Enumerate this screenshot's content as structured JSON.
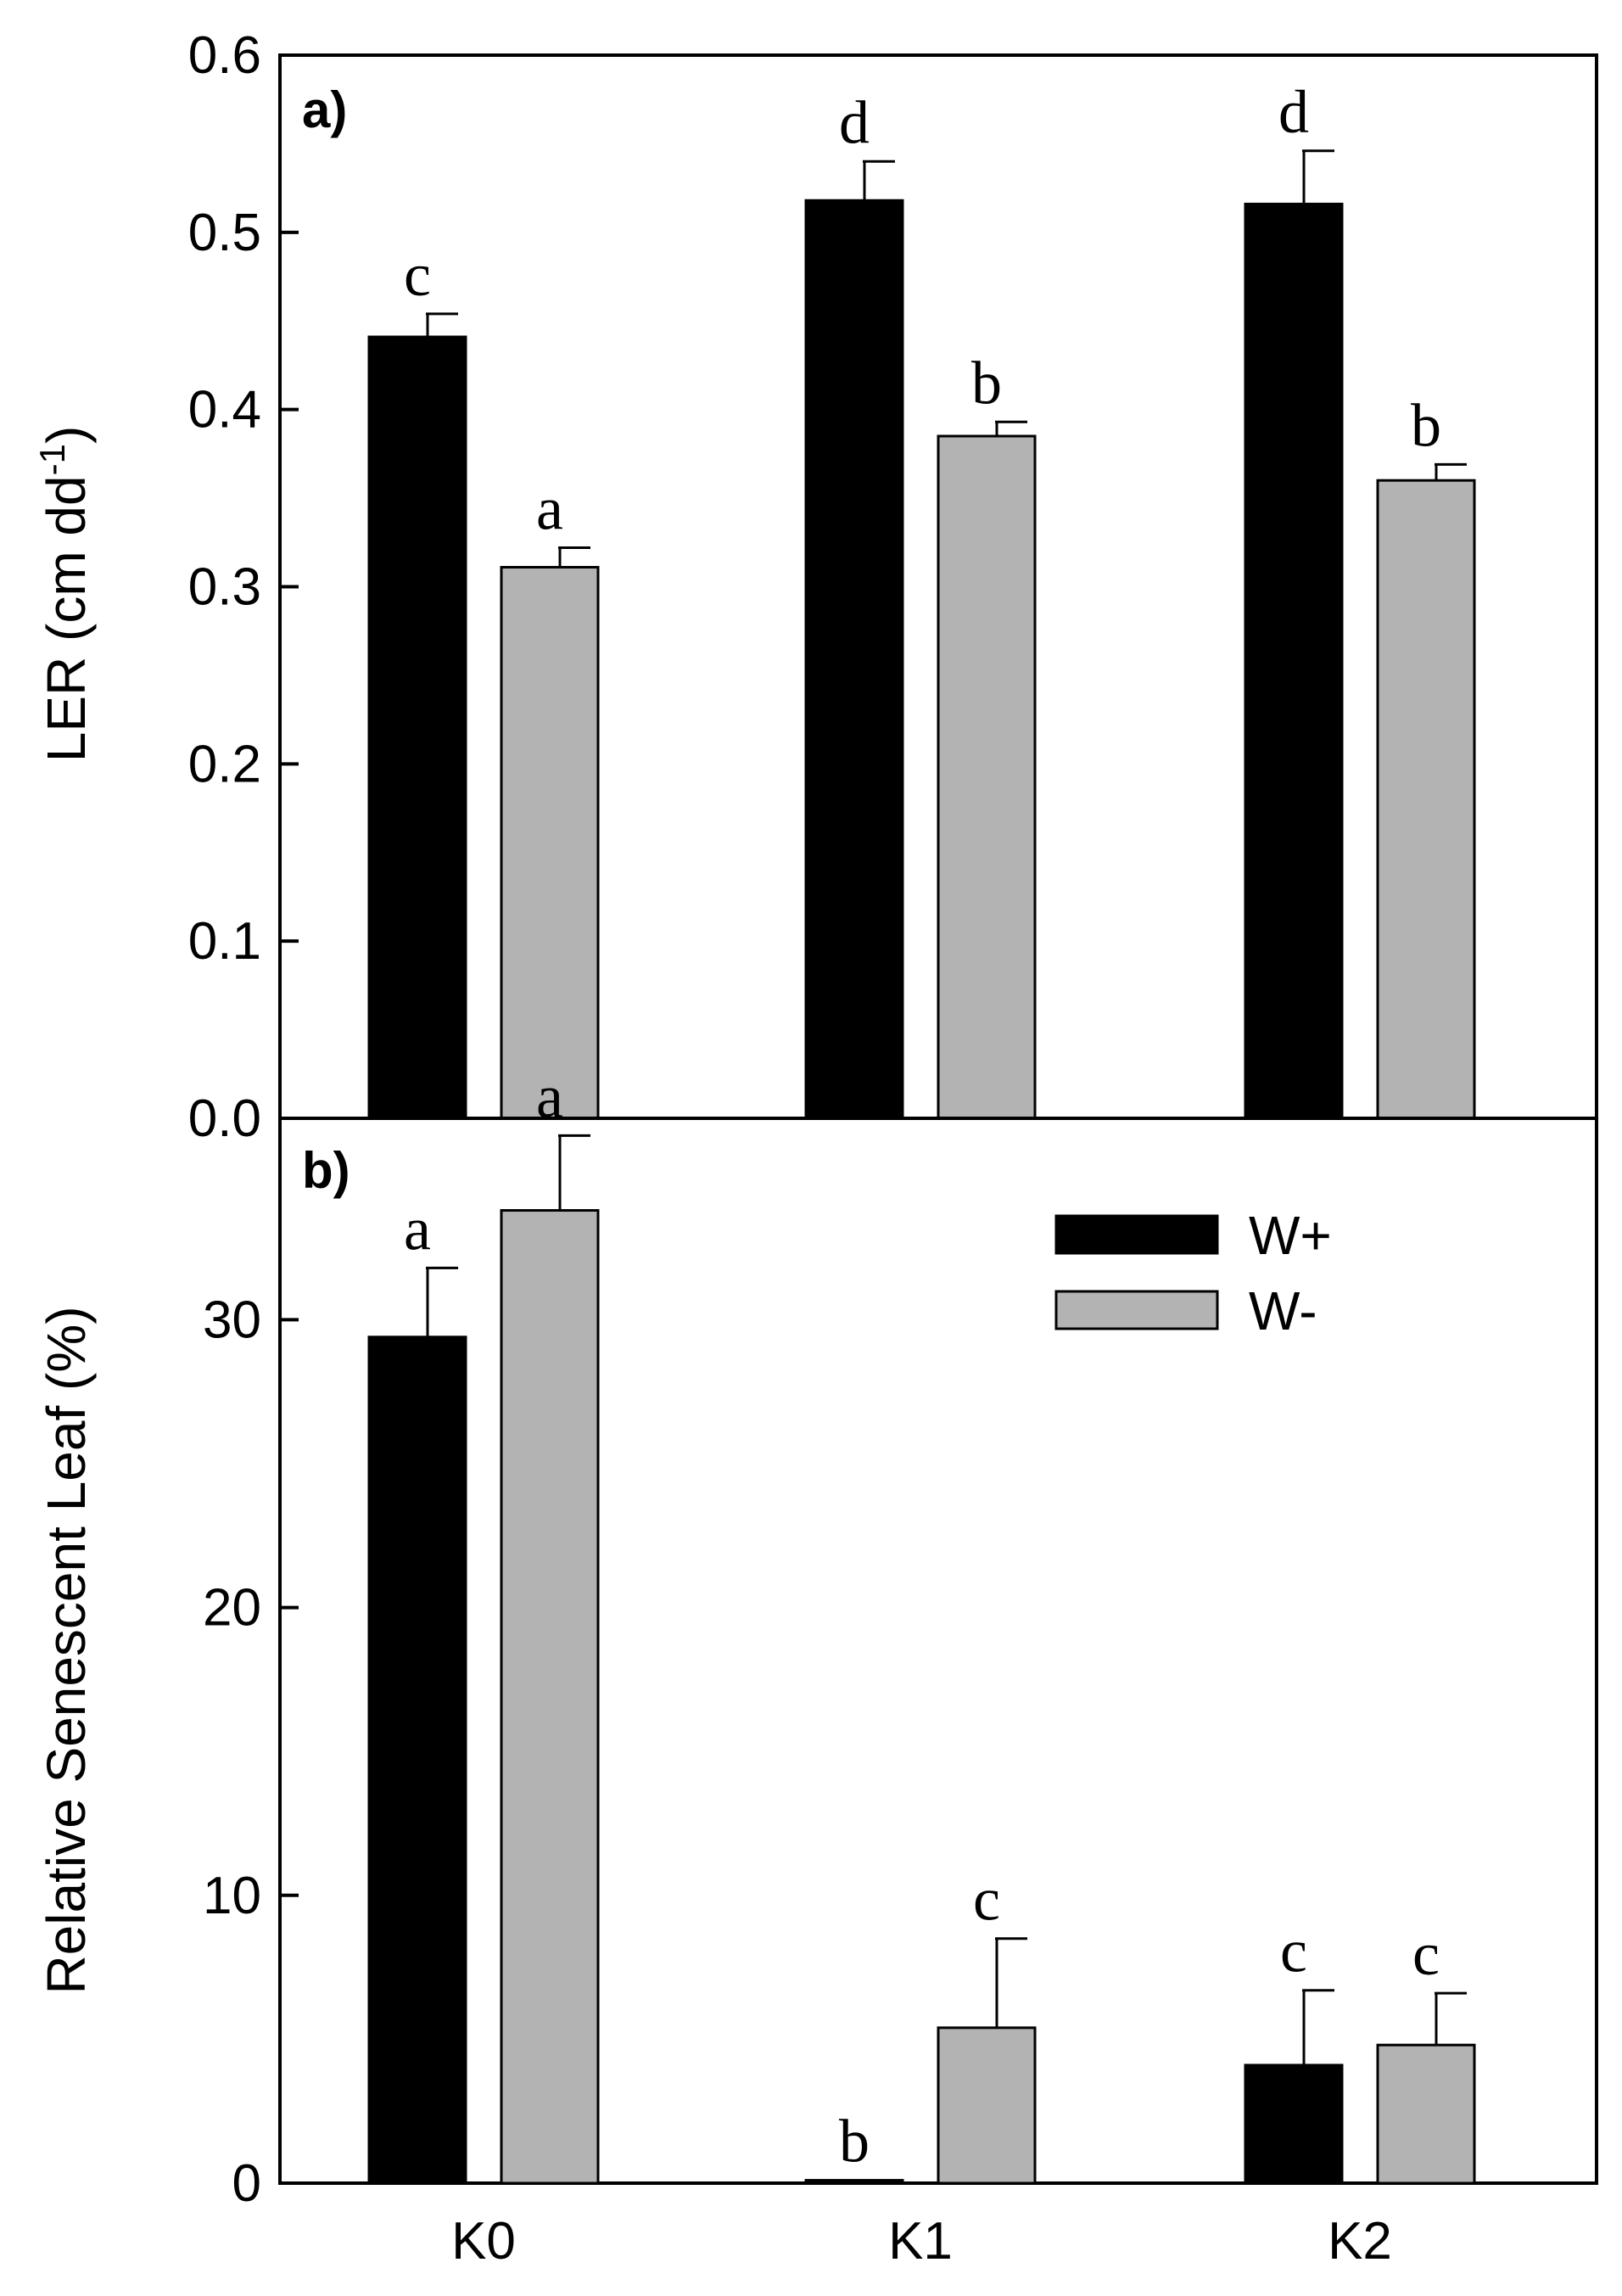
{
  "colors": {
    "w_plus": "#000000",
    "w_minus": "#b3b3b3",
    "bar_stroke": "#000000"
  },
  "chart_data": [
    {
      "type": "bar",
      "panel_label": "a)",
      "categories": [
        "K0",
        "K1",
        "K2"
      ],
      "ylabel": "LER (cm dd",
      "ylabel_sup": "-1",
      "ylabel_end": ")",
      "ylim": [
        0,
        0.6
      ],
      "yticks": [
        0.0,
        0.1,
        0.2,
        0.3,
        0.4,
        0.5,
        0.6
      ],
      "ytick_labels": [
        "0.0",
        "0.1",
        "0.2",
        "0.3",
        "0.4",
        "0.5",
        "0.6"
      ],
      "series": [
        {
          "name": "W+",
          "values": [
            0.441,
            0.518,
            0.516
          ],
          "errors": [
            0.013,
            0.022,
            0.03
          ],
          "letters": [
            "c",
            "d",
            "d"
          ]
        },
        {
          "name": "W-",
          "values": [
            0.311,
            0.385,
            0.36
          ],
          "errors": [
            0.011,
            0.008,
            0.009
          ],
          "letters": [
            "a",
            "b",
            "b"
          ]
        }
      ]
    },
    {
      "type": "bar",
      "panel_label": "b)",
      "categories": [
        "K0",
        "K1",
        "K2"
      ],
      "xtick_labels": [
        "K0",
        "K1",
        "K2"
      ],
      "ylabel": "Relative Senescent Leaf  (%)",
      "ylim": [
        0,
        37
      ],
      "yticks": [
        0,
        10,
        20,
        30
      ],
      "ytick_labels": [
        "0",
        "10",
        "20",
        "30"
      ],
      "legend": [
        "W+",
        "W-"
      ],
      "series": [
        {
          "name": "W+",
          "values": [
            29.4,
            0.1,
            4.1
          ],
          "errors": [
            2.4,
            0,
            2.6
          ],
          "letters": [
            "a",
            "b",
            "c"
          ]
        },
        {
          "name": "W-",
          "values": [
            33.8,
            5.4,
            4.8
          ],
          "errors": [
            2.6,
            3.1,
            1.8
          ],
          "letters": [
            "a",
            "c",
            "c"
          ]
        }
      ]
    }
  ]
}
